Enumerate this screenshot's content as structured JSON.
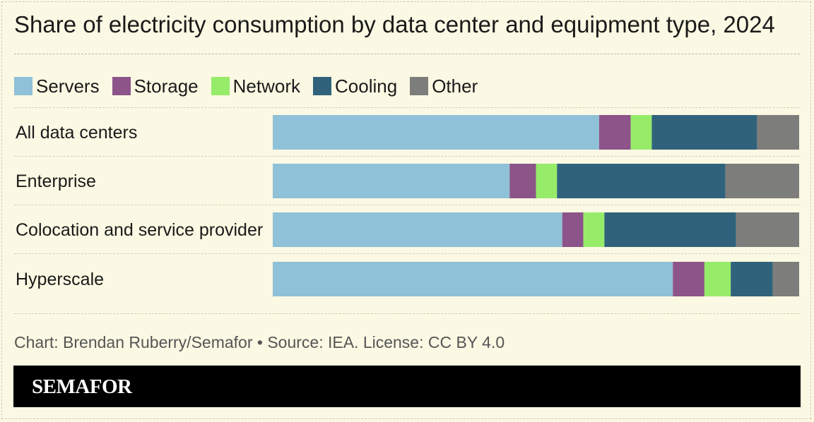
{
  "chart_data": {
    "type": "bar",
    "orientation": "horizontal",
    "stacked": true,
    "title": "Share of electricity consumption by data center and equipment type, 2024",
    "categories": [
      "All data centers",
      "Enterprise",
      "Colocation and service provider",
      "Hyperscale"
    ],
    "series": [
      {
        "name": "Servers",
        "color": "#8fc1d8",
        "values": [
          62,
          45,
          55,
          76
        ]
      },
      {
        "name": "Storage",
        "color": "#8c5489",
        "values": [
          6,
          5,
          4,
          6
        ]
      },
      {
        "name": "Network",
        "color": "#96ec69",
        "values": [
          4,
          4,
          4,
          5
        ]
      },
      {
        "name": "Cooling",
        "color": "#30637b",
        "values": [
          20,
          32,
          25,
          8
        ]
      },
      {
        "name": "Other",
        "color": "#7d7d7b",
        "values": [
          8,
          14,
          12,
          5
        ]
      }
    ],
    "xlim": [
      0,
      100
    ],
    "xlabel": "",
    "ylabel": "",
    "grid": false,
    "legend_position": "top-left"
  },
  "footer": {
    "source": "Chart: Brendan Ruberry/Semafor • Source: IEA. License: CC BY 4.0",
    "logo_text": "SEMAFOR"
  }
}
